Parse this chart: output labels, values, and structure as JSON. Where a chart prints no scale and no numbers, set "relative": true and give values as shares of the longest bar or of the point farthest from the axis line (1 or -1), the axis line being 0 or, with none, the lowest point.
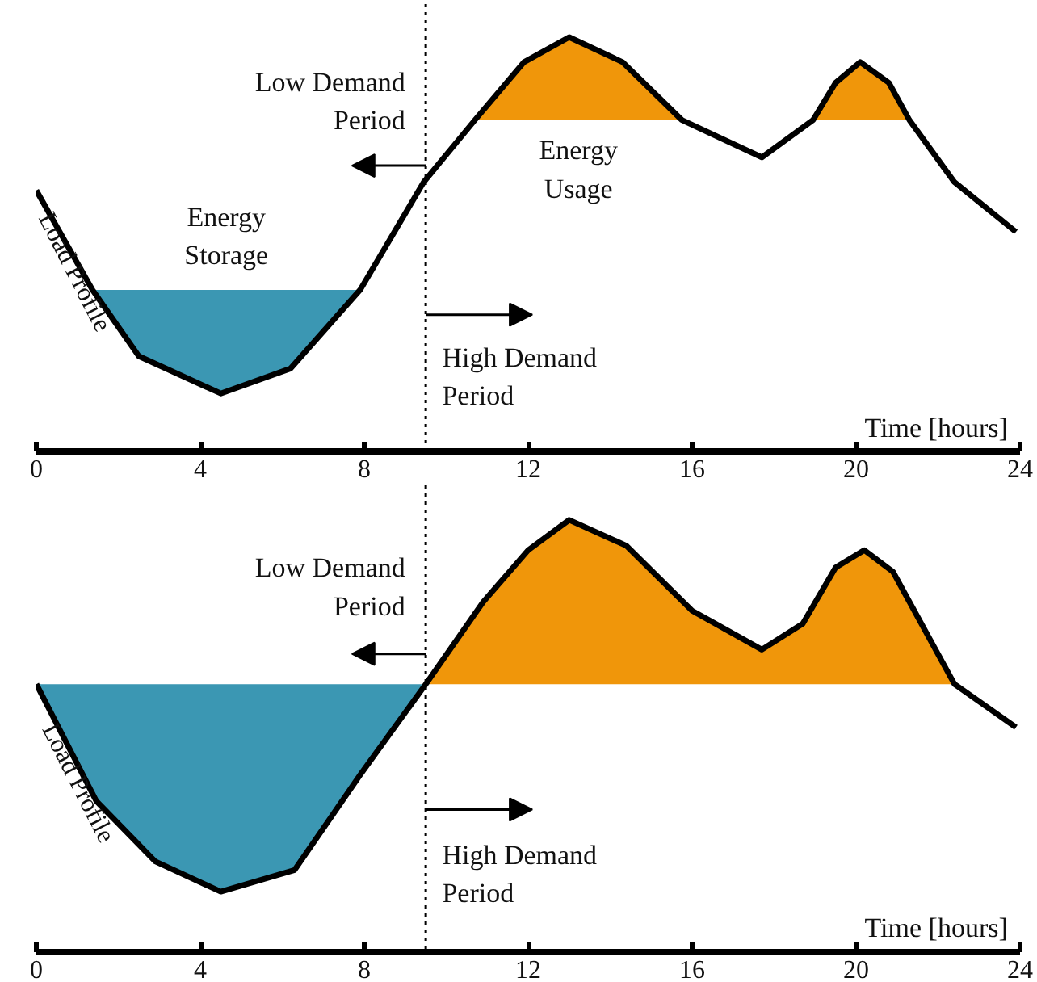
{
  "chart_data": [
    {
      "type": "line",
      "relative": true,
      "xlabel": "Time [hours]",
      "xlim": [
        0,
        24
      ],
      "xticks": [
        0,
        4,
        8,
        12,
        16,
        20,
        24
      ],
      "tick_labels": "x",
      "grid": false,
      "line_style": "solid",
      "series": [
        {
          "name": "Load Profile",
          "color": "#000000",
          "x": [
            0,
            1.37,
            2.5,
            4.5,
            6.2,
            7.9,
            9.45,
            10.7,
            11.9,
            13,
            14.3,
            15.75,
            17.7,
            18.95,
            19.5,
            20.1,
            20.8,
            21.3,
            22.4,
            23.9
          ],
          "values": [
            0.63,
            0.39,
            0.23,
            0.14,
            0.2,
            0.39,
            0.65,
            0.8,
            0.94,
            1,
            0.94,
            0.8,
            0.71,
            0.8,
            0.89,
            0.94,
            0.89,
            0.8,
            0.65,
            0.53
          ]
        },
        {
          "type": "area",
          "color": "#3b97b3",
          "x": [
            1.37,
            2.5,
            4.5,
            6.2,
            7.9
          ],
          "values": [
            0.39,
            0.39,
            0.39,
            0.39,
            0.39
          ]
        },
        {
          "type": "area",
          "color": "#f0960a",
          "x": [
            10.7,
            11.9,
            13,
            14.3,
            15.75
          ],
          "values": [
            0.8,
            0.94,
            1,
            0.94,
            0.8
          ]
        },
        {
          "type": "area",
          "color": "#f0960a",
          "x": [
            18.95,
            19.5,
            20.1,
            20.8,
            21.3
          ],
          "values": [
            0.8,
            0.89,
            0.94,
            0.89,
            0.8
          ]
        }
      ],
      "ref_lines": [
        {
          "axis": "x",
          "value": 9.5,
          "line_style": "dotted",
          "color": "#000000"
        }
      ],
      "annotations": [
        "Low Demand\nPeriod",
        "High Demand\nPeriod",
        "Energy\nStorage",
        "Energy\nUsage"
      ]
    },
    {
      "type": "line",
      "relative": true,
      "xlabel": "Time [hours]",
      "xlim": [
        0,
        24
      ],
      "xticks": [
        0,
        4,
        8,
        12,
        16,
        20,
        24
      ],
      "tick_labels": "x",
      "grid": false,
      "line_style": "solid",
      "series": [
        {
          "name": "Load Profile",
          "color": "#000000",
          "x": [
            0,
            1.46,
            2.9,
            4.5,
            6.3,
            7.9,
            9.5,
            10.9,
            12,
            13,
            14.4,
            16,
            17.7,
            18.7,
            19.5,
            20.2,
            20.9,
            22.4,
            23.9
          ],
          "values": [
            0.62,
            0.35,
            0.21,
            0.14,
            0.19,
            0.41,
            0.62,
            0.81,
            0.93,
            1,
            0.94,
            0.79,
            0.7,
            0.76,
            0.89,
            0.93,
            0.88,
            0.62,
            0.52
          ]
        },
        {
          "type": "area",
          "color": "#3b97b3",
          "x": [
            0,
            1.46,
            2.9,
            4.5,
            6.3,
            7.9,
            9.5
          ],
          "values": [
            0.62,
            0.62,
            0.62,
            0.62,
            0.62,
            0.62,
            0.62
          ]
        },
        {
          "type": "area",
          "color": "#f0960a",
          "x": [
            9.5,
            10.9,
            12,
            13,
            14.4,
            16,
            17.7,
            18.7,
            19.5,
            20.2,
            20.9,
            22.4
          ],
          "values": [
            0.62,
            0.81,
            0.93,
            1,
            0.94,
            0.79,
            0.7,
            0.76,
            0.89,
            0.93,
            0.88,
            0.62
          ]
        }
      ],
      "ref_lines": [
        {
          "axis": "x",
          "value": 9.5,
          "line_style": "dotted",
          "color": "#000000"
        }
      ],
      "annotations": [
        "Low Demand\nPeriod",
        "High Demand\nPeriod"
      ]
    }
  ]
}
